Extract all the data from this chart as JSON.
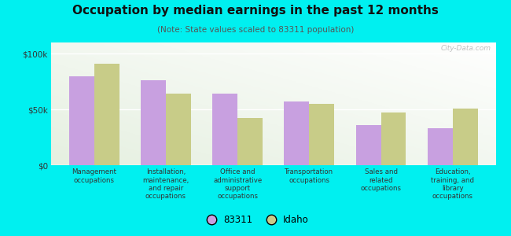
{
  "title": "Occupation by median earnings in the past 12 months",
  "subtitle": "(Note: State values scaled to 83311 population)",
  "categories": [
    "Management\noccupations",
    "Installation,\nmaintenance,\nand repair\noccupations",
    "Office and\nadministrative\nsupport\noccupations",
    "Transportation\noccupations",
    "Sales and\nrelated\noccupations",
    "Education,\ntraining, and\nlibrary\noccupations"
  ],
  "values_83311": [
    80000,
    76000,
    64000,
    57000,
    36000,
    33000
  ],
  "values_idaho": [
    91000,
    64000,
    42000,
    55000,
    47000,
    51000
  ],
  "color_83311": "#c8a0e0",
  "color_idaho": "#c8cc88",
  "background_color": "#00f0f0",
  "ylim": [
    0,
    110000
  ],
  "yticks": [
    0,
    50000,
    100000
  ],
  "ytick_labels": [
    "$0",
    "$50k",
    "$100k"
  ],
  "bar_width": 0.35,
  "legend_label_83311": "83311",
  "legend_label_idaho": "Idaho",
  "watermark": "City-Data.com"
}
